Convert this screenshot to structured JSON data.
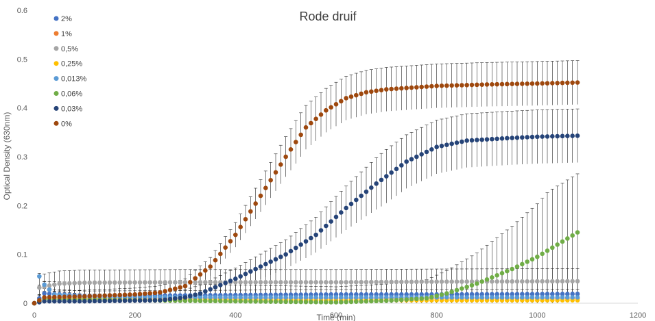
{
  "chart_data": {
    "type": "scatter",
    "title": "Rode druif",
    "xlabel": "Time (min)",
    "ylabel": "Optical Density (630nm)",
    "xlim": [
      0,
      1200
    ],
    "ylim": [
      0,
      0.6
    ],
    "x_ticks": [
      "0",
      "200",
      "400",
      "600",
      "800",
      "1000",
      "1200"
    ],
    "y_ticks": [
      "0",
      "0.1",
      "0.2",
      "0.3",
      "0.4",
      "0.5",
      "0.6"
    ],
    "grid": false,
    "legend_position": "top-left",
    "error_bars": true,
    "x_step": 10,
    "x_max": 1080,
    "series": [
      {
        "name": "2%",
        "color": "#4472c4",
        "points": [
          [
            0,
            0.0
          ],
          [
            20,
            0.02
          ],
          [
            100,
            0.015
          ],
          [
            300,
            0.016
          ],
          [
            600,
            0.018
          ],
          [
            800,
            0.018
          ],
          [
            1080,
            0.019
          ]
        ],
        "error": 0.01
      },
      {
        "name": "1%",
        "color": "#ed7d31",
        "points": [
          [
            0,
            0.0
          ],
          [
            20,
            0.01
          ],
          [
            200,
            0.01
          ],
          [
            600,
            0.01
          ],
          [
            1080,
            0.01
          ]
        ],
        "error": 0.004
      },
      {
        "name": "0,5%",
        "color": "#a5a5a5",
        "points": [
          [
            0,
            0.0
          ],
          [
            10,
            0.032
          ],
          [
            50,
            0.04
          ],
          [
            100,
            0.042
          ],
          [
            300,
            0.043
          ],
          [
            600,
            0.043
          ],
          [
            800,
            0.044
          ],
          [
            1080,
            0.045
          ]
        ],
        "error": 0.026
      },
      {
        "name": "0,25%",
        "color": "#ffc000",
        "points": [
          [
            0,
            0.0
          ],
          [
            20,
            0.008
          ],
          [
            200,
            0.007
          ],
          [
            600,
            0.006
          ],
          [
            1080,
            0.006
          ]
        ],
        "error": 0.003
      },
      {
        "name": "0,013%",
        "color": "#5b9bd5",
        "points": [
          [
            0,
            0.0
          ],
          [
            10,
            0.055
          ],
          [
            20,
            0.038
          ],
          [
            40,
            0.018
          ],
          [
            100,
            0.013
          ],
          [
            400,
            0.012
          ],
          [
            800,
            0.012
          ],
          [
            1080,
            0.012
          ]
        ],
        "error": 0.006
      },
      {
        "name": "0,06%",
        "color": "#70ad47",
        "points": [
          [
            0,
            0.0
          ],
          [
            20,
            0.008
          ],
          [
            400,
            0.004
          ],
          [
            600,
            0.002
          ],
          [
            700,
            0.005
          ],
          [
            780,
            0.01
          ],
          [
            820,
            0.02
          ],
          [
            880,
            0.04
          ],
          [
            950,
            0.07
          ],
          [
            1000,
            0.095
          ],
          [
            1040,
            0.12
          ],
          [
            1080,
            0.145
          ]
        ],
        "error": 0.12
      },
      {
        "name": "0,03%",
        "color": "#264478",
        "points": [
          [
            0,
            0.0
          ],
          [
            20,
            0.004
          ],
          [
            100,
            0.004
          ],
          [
            250,
            0.006
          ],
          [
            300,
            0.012
          ],
          [
            330,
            0.02
          ],
          [
            400,
            0.05
          ],
          [
            500,
            0.1
          ],
          [
            560,
            0.14
          ],
          [
            620,
            0.195
          ],
          [
            680,
            0.245
          ],
          [
            740,
            0.29
          ],
          [
            800,
            0.32
          ],
          [
            860,
            0.333
          ],
          [
            940,
            0.338
          ],
          [
            1000,
            0.341
          ],
          [
            1080,
            0.343
          ]
        ],
        "error": 0.055
      },
      {
        "name": "0%",
        "color": "#9e480e",
        "points": [
          [
            0,
            0.0
          ],
          [
            20,
            0.012
          ],
          [
            100,
            0.014
          ],
          [
            200,
            0.018
          ],
          [
            250,
            0.022
          ],
          [
            300,
            0.035
          ],
          [
            350,
            0.075
          ],
          [
            400,
            0.14
          ],
          [
            450,
            0.22
          ],
          [
            500,
            0.3
          ],
          [
            540,
            0.36
          ],
          [
            580,
            0.395
          ],
          [
            620,
            0.42
          ],
          [
            660,
            0.432
          ],
          [
            700,
            0.438
          ],
          [
            800,
            0.445
          ],
          [
            900,
            0.448
          ],
          [
            1000,
            0.45
          ],
          [
            1080,
            0.452
          ]
        ],
        "error": 0.045
      }
    ]
  }
}
